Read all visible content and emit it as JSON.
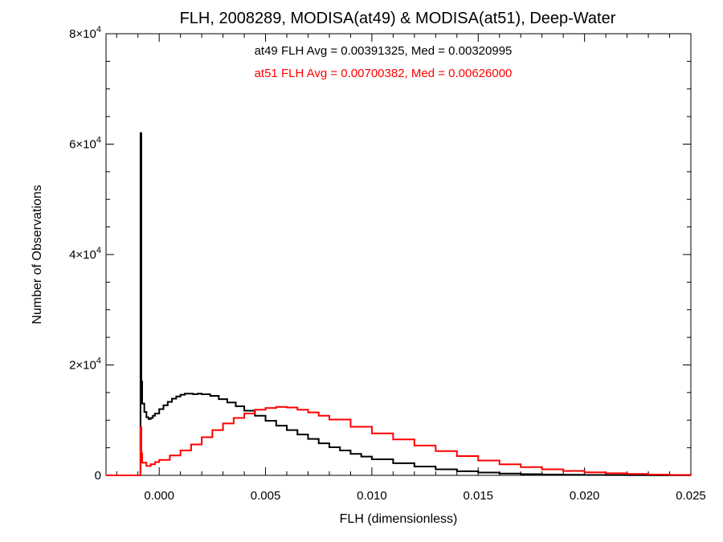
{
  "chart_data": {
    "type": "line",
    "title": "FLH, 2008289, MODISA(at49) & MODISA(at51), Deep-Water",
    "xlabel": "FLH (dimensionless)",
    "ylabel": "Number of Observations",
    "xlim": [
      -0.0025,
      0.025
    ],
    "ylim": [
      0,
      80000
    ],
    "x_ticks": [
      {
        "value": 0.0,
        "label": "0.000"
      },
      {
        "value": 0.005,
        "label": "0.005"
      },
      {
        "value": 0.01,
        "label": "0.010"
      },
      {
        "value": 0.015,
        "label": "0.015"
      },
      {
        "value": 0.02,
        "label": "0.020"
      },
      {
        "value": 0.025,
        "label": "0.025"
      }
    ],
    "y_ticks": [
      {
        "value": 0,
        "base": "0",
        "exp": ""
      },
      {
        "value": 20000,
        "base": "2×10",
        "exp": "4"
      },
      {
        "value": 40000,
        "base": "4×10",
        "exp": "4"
      },
      {
        "value": 60000,
        "base": "6×10",
        "exp": "4"
      },
      {
        "value": 80000,
        "base": "8×10",
        "exp": "4"
      }
    ],
    "annotations": [
      {
        "text": "at49 FLH Avg = 0.00391325, Med = 0.00320995",
        "color": "#000000"
      },
      {
        "text": "at51 FLH Avg = 0.00700382, Med = 0.00626000",
        "color": "#ff0000"
      }
    ],
    "series": [
      {
        "color": "#000000",
        "x": [
          -0.0025,
          -0.00092,
          -0.00088,
          -0.00084,
          -0.0008,
          -0.0007,
          -0.0006,
          -0.0005,
          -0.0004,
          -0.0003,
          -0.0002,
          0.0,
          0.0002,
          0.0004,
          0.0006,
          0.0008,
          0.001,
          0.0012,
          0.0014,
          0.0016,
          0.0018,
          0.002,
          0.0024,
          0.0028,
          0.0032,
          0.0036,
          0.004,
          0.0045,
          0.005,
          0.0055,
          0.006,
          0.0065,
          0.007,
          0.0075,
          0.008,
          0.0085,
          0.009,
          0.0095,
          0.01,
          0.011,
          0.012,
          0.013,
          0.014,
          0.015,
          0.016,
          0.017,
          0.018,
          0.019,
          0.02,
          0.021,
          0.022,
          0.023,
          0.024,
          0.025
        ],
        "y": [
          0,
          0,
          62000,
          17000,
          13000,
          11500,
          10500,
          10200,
          10400,
          10800,
          11200,
          12000,
          12700,
          13300,
          13900,
          14300,
          14600,
          14800,
          14800,
          14700,
          14800,
          14700,
          14400,
          13800,
          13200,
          12500,
          11700,
          10800,
          9900,
          9000,
          8200,
          7400,
          6600,
          5800,
          5100,
          4500,
          3900,
          3400,
          2900,
          2200,
          1600,
          1100,
          750,
          500,
          330,
          220,
          150,
          100,
          70,
          50,
          35,
          25,
          15,
          0
        ]
      },
      {
        "color": "#ff0000",
        "x": [
          -0.0025,
          -0.00092,
          -0.00088,
          -0.00084,
          -0.0008,
          -0.0006,
          -0.0004,
          -0.0002,
          0.0,
          0.0005,
          0.001,
          0.0015,
          0.002,
          0.0025,
          0.003,
          0.0035,
          0.004,
          0.0045,
          0.005,
          0.0055,
          0.006,
          0.0065,
          0.007,
          0.0075,
          0.008,
          0.009,
          0.01,
          0.011,
          0.012,
          0.013,
          0.014,
          0.015,
          0.016,
          0.017,
          0.018,
          0.019,
          0.02,
          0.021,
          0.022,
          0.023,
          0.024,
          0.025
        ],
        "y": [
          0,
          0,
          8700,
          4000,
          2300,
          1700,
          2000,
          2400,
          2800,
          3600,
          4500,
          5600,
          6900,
          8200,
          9400,
          10400,
          11200,
          11900,
          12200,
          12400,
          12300,
          11900,
          11400,
          10800,
          10100,
          8800,
          7600,
          6500,
          5400,
          4400,
          3500,
          2700,
          2000,
          1500,
          1100,
          800,
          550,
          380,
          250,
          150,
          80,
          0
        ]
      }
    ]
  }
}
